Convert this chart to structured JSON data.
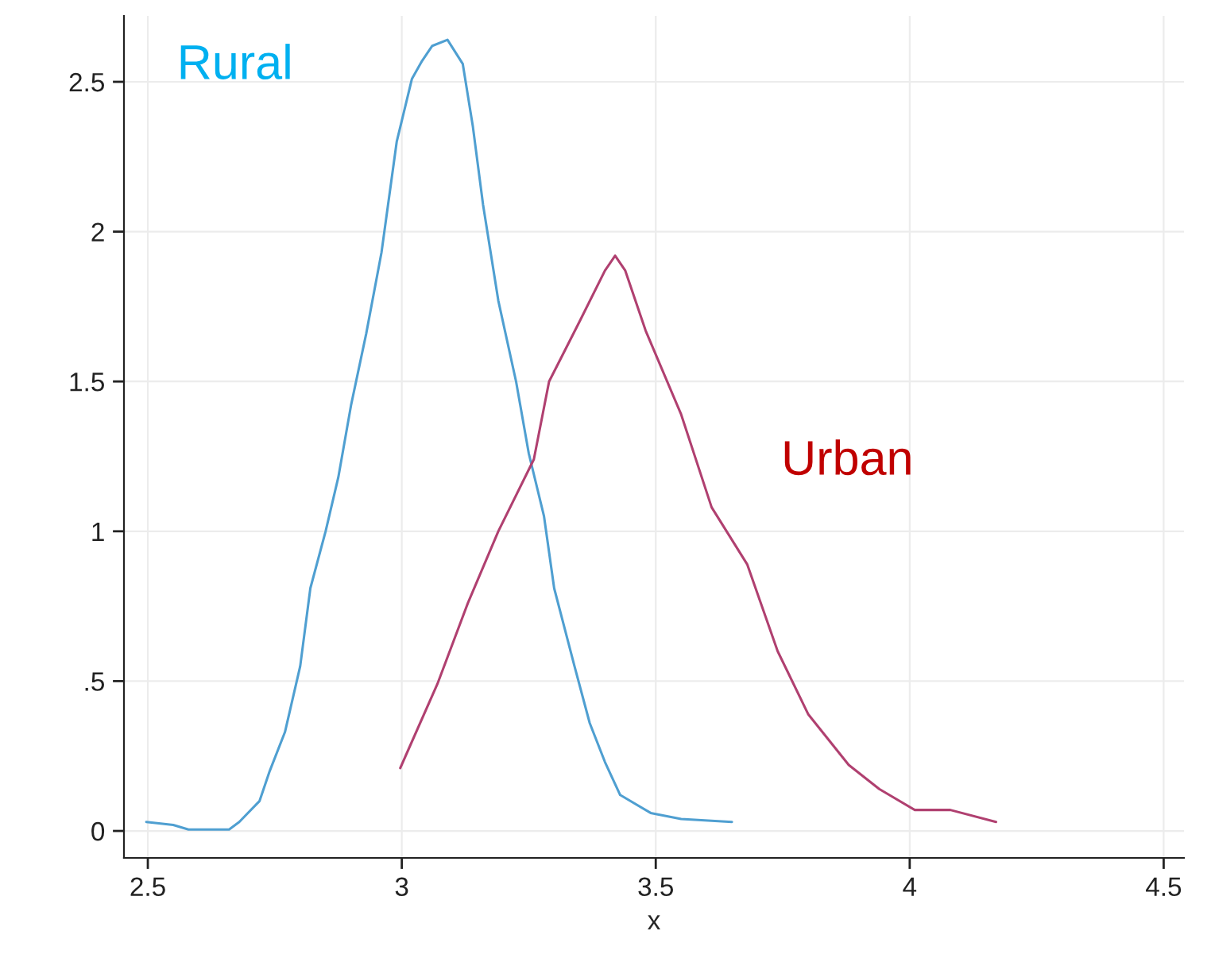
{
  "chart_data": {
    "type": "line",
    "xlabel": "x",
    "xlim": [
      2.453,
      4.54
    ],
    "ylim": [
      -0.09,
      2.72
    ],
    "xticks": [
      2.5,
      3,
      3.5,
      4,
      4.5
    ],
    "yticks": [
      0,
      {
        "value": 0.5,
        "label": ".5"
      },
      1,
      1.5,
      2,
      2.5
    ],
    "grid": true,
    "legend": false,
    "series": [
      {
        "name": "Rural",
        "color": "#4f9fd1",
        "x": [
          2.497,
          2.55,
          2.58,
          2.66,
          2.68,
          2.72,
          2.74,
          2.77,
          2.8,
          2.82,
          2.85,
          2.875,
          2.9,
          2.93,
          2.96,
          2.99,
          3.02,
          3.04,
          3.06,
          3.09,
          3.12,
          3.14,
          3.16,
          3.19,
          3.225,
          3.25,
          3.28,
          3.3,
          3.34,
          3.37,
          3.4,
          3.43,
          3.49,
          3.55,
          3.65
        ],
        "values": [
          0.03,
          0.02,
          0.005,
          0.005,
          0.03,
          0.1,
          0.2,
          0.33,
          0.55,
          0.81,
          1.0,
          1.18,
          1.42,
          1.66,
          1.93,
          2.3,
          2.51,
          2.57,
          2.62,
          2.64,
          2.56,
          2.35,
          2.09,
          1.77,
          1.5,
          1.26,
          1.05,
          0.81,
          0.55,
          0.36,
          0.23,
          0.12,
          0.06,
          0.04,
          0.03
        ]
      },
      {
        "name": "Urban",
        "color": "#b04070",
        "x": [
          2.997,
          3.07,
          3.13,
          3.19,
          3.26,
          3.29,
          3.35,
          3.4,
          3.42,
          3.44,
          3.48,
          3.55,
          3.61,
          3.68,
          3.74,
          3.8,
          3.88,
          3.94,
          4.01,
          4.08,
          4.17
        ],
        "values": [
          0.21,
          0.49,
          0.76,
          1.0,
          1.24,
          1.5,
          1.7,
          1.87,
          1.92,
          1.87,
          1.67,
          1.39,
          1.08,
          0.89,
          0.6,
          0.39,
          0.22,
          0.14,
          0.07,
          0.07,
          0.03
        ]
      }
    ]
  }
}
